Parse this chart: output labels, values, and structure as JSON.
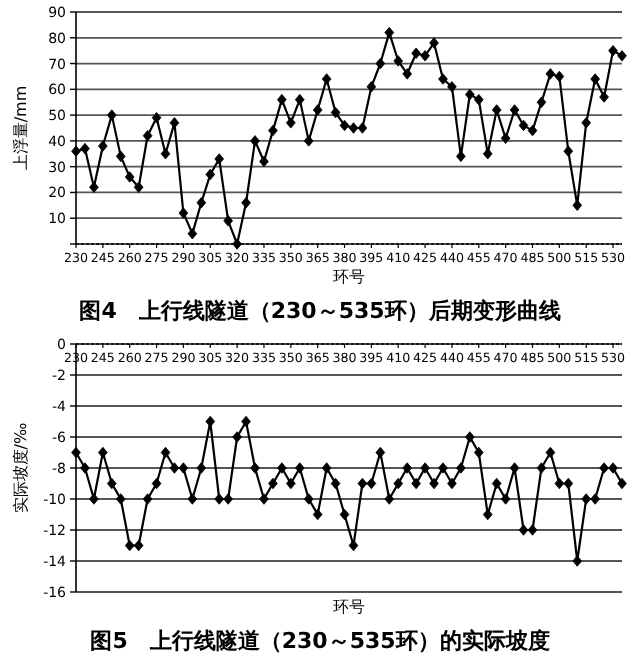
{
  "chart_data": [
    {
      "type": "line",
      "title": "图4　上行线隧道（230～535环）后期变形曲线",
      "xlabel": "环号",
      "ylabel": "上浮量/mm",
      "color": "#000000",
      "marker": "diamond",
      "grid": "y",
      "x": [
        230,
        235,
        240,
        245,
        250,
        255,
        260,
        265,
        270,
        275,
        280,
        285,
        290,
        295,
        300,
        305,
        310,
        315,
        320,
        325,
        330,
        335,
        340,
        345,
        350,
        355,
        360,
        365,
        370,
        375,
        380,
        385,
        390,
        395,
        400,
        405,
        410,
        415,
        420,
        425,
        430,
        435,
        440,
        445,
        450,
        455,
        460,
        465,
        470,
        475,
        480,
        485,
        490,
        495,
        500,
        505,
        510,
        515,
        520,
        525,
        530,
        535
      ],
      "values": [
        36,
        37,
        22,
        38,
        50,
        34,
        26,
        22,
        42,
        49,
        35,
        47,
        12,
        4,
        16,
        27,
        33,
        9,
        0,
        16,
        40,
        32,
        44,
        56,
        47,
        56,
        40,
        52,
        64,
        51,
        46,
        45,
        45,
        61,
        70,
        82,
        71,
        66,
        74,
        73,
        78,
        64,
        61,
        34,
        58,
        56,
        35,
        52,
        41,
        52,
        46,
        44,
        55,
        66,
        65,
        36,
        15,
        47,
        64,
        57,
        75,
        73
      ],
      "xlim": [
        230,
        535
      ],
      "xticks": [
        230,
        245,
        260,
        275,
        290,
        305,
        320,
        335,
        350,
        365,
        380,
        395,
        410,
        425,
        440,
        455,
        470,
        485,
        500,
        515,
        530
      ],
      "ylim": [
        0,
        90
      ],
      "yticks": [
        {
          "value": 0,
          "label": null
        },
        10,
        20,
        30,
        40,
        50,
        60,
        70,
        80,
        90
      ]
    },
    {
      "type": "line",
      "title": "图5　上行线隧道（230～535环）的实际坡度",
      "xlabel": "环号",
      "ylabel": "实际坡度/‰",
      "color": "#000000",
      "marker": "diamond",
      "grid": "y",
      "x": [
        230,
        235,
        240,
        245,
        250,
        255,
        260,
        265,
        270,
        275,
        280,
        285,
        290,
        295,
        300,
        305,
        310,
        315,
        320,
        325,
        330,
        335,
        340,
        345,
        350,
        355,
        360,
        365,
        370,
        375,
        380,
        385,
        390,
        395,
        400,
        405,
        410,
        415,
        420,
        425,
        430,
        435,
        440,
        445,
        450,
        455,
        460,
        465,
        470,
        475,
        480,
        485,
        490,
        495,
        500,
        505,
        510,
        515,
        520,
        525,
        530,
        535
      ],
      "values": [
        -7,
        -8,
        -10,
        -7,
        -9,
        -10,
        -13,
        -13,
        -10,
        -9,
        -7,
        -8,
        -8,
        -10,
        -8,
        -5,
        -10,
        -10,
        -6,
        -5,
        -8,
        -10,
        -9,
        -8,
        -9,
        -8,
        -10,
        -11,
        -8,
        -9,
        -11,
        -13,
        -9,
        -9,
        -7,
        -10,
        -9,
        -8,
        -9,
        -8,
        -9,
        -8,
        -9,
        -8,
        -6,
        -7,
        -11,
        -9,
        -10,
        -8,
        -12,
        -12,
        -8,
        -7,
        -9,
        -9,
        -14,
        -10,
        -10,
        -8,
        -8,
        -9
      ],
      "xlim": [
        230,
        535
      ],
      "xticks": [
        230,
        245,
        260,
        275,
        290,
        305,
        320,
        335,
        350,
        365,
        380,
        395,
        410,
        425,
        440,
        455,
        470,
        485,
        500,
        515,
        530
      ],
      "ylim": [
        -16,
        0
      ],
      "yticks": [
        0,
        -2,
        -4,
        -6,
        -8,
        -10,
        -12,
        -14,
        -16
      ]
    }
  ]
}
